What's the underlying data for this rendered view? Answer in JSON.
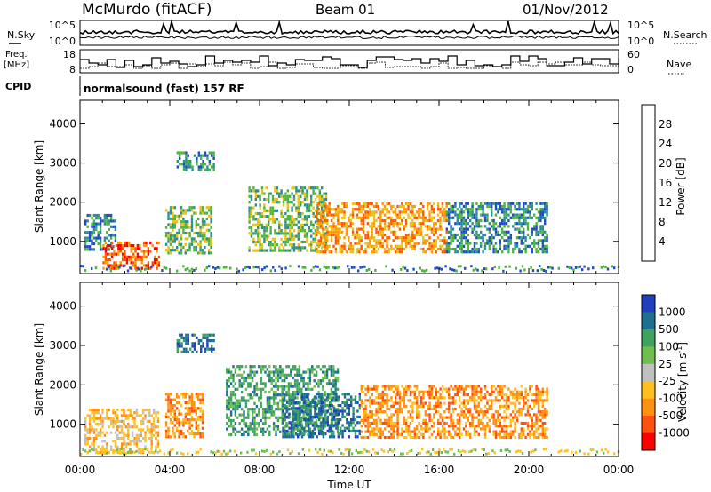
{
  "header": {
    "station": "McMurdo (fitACF)",
    "beam": "Beam 01",
    "date": "01/Nov/2012"
  },
  "left_labels": {
    "nsky": "N.Sky",
    "freq_line1": "Freq.",
    "freq_line2": "[MHz]",
    "cpid": "CPID"
  },
  "right_labels": {
    "nsearch": "N.Search",
    "nave": "Nave"
  },
  "noise_panel": {
    "left_ticks": [
      "10^5",
      "10^0"
    ],
    "right_ticks": [
      "10^5",
      "10^0"
    ]
  },
  "freq_panel": {
    "left_ticks": [
      "18",
      "8"
    ],
    "right_ticks": [
      "60",
      "0"
    ]
  },
  "cpid_text": "normalsound (fast) 157 RF",
  "x_axis": {
    "label": "Time UT",
    "ticks": [
      "00:00",
      "04:00",
      "08:00",
      "12:00",
      "16:00",
      "20:00",
      "00:00"
    ]
  },
  "chart_data": [
    {
      "type": "heatmap",
      "title": "",
      "xlabel": "Time UT",
      "ylabel": "Slant Range [km]",
      "x_ticks": [
        "00:00",
        "04:00",
        "08:00",
        "12:00",
        "16:00",
        "20:00",
        "00:00"
      ],
      "y_ticks": [
        "1000",
        "2000",
        "3000",
        "4000"
      ],
      "ylim": [
        180,
        4600
      ],
      "xlim_hours": [
        0,
        24
      ],
      "colorbar": {
        "label": "Power [dB]",
        "ticks": [
          "4",
          "8",
          "12",
          "16",
          "20",
          "24",
          "28"
        ],
        "range": [
          0,
          32
        ],
        "colors": [
          "#0000ff",
          "#1f4fbf",
          "#2c8f8f",
          "#4fb33f",
          "#e6c21a",
          "#ff9a00",
          "#ff5a00",
          "#ff0000"
        ]
      },
      "regions": [
        {
          "t0": 0.2,
          "t1": 1.6,
          "r0": 800,
          "r1": 1700,
          "value": 10
        },
        {
          "t0": 1.0,
          "t1": 3.5,
          "r0": 300,
          "r1": 1000,
          "value": 26
        },
        {
          "t0": 3.8,
          "t1": 5.8,
          "r0": 700,
          "r1": 1900,
          "value": 14
        },
        {
          "t0": 4.3,
          "t1": 6.0,
          "r0": 2800,
          "r1": 3300,
          "value": 10
        },
        {
          "t0": 7.5,
          "t1": 11.0,
          "r0": 800,
          "r1": 2400,
          "value": 14
        },
        {
          "t0": 10.5,
          "t1": 16.3,
          "r0": 700,
          "r1": 2000,
          "value": 24
        },
        {
          "t0": 16.3,
          "t1": 20.8,
          "r0": 700,
          "r1": 2000,
          "value": 10
        }
      ]
    },
    {
      "type": "heatmap",
      "title": "",
      "xlabel": "Time UT",
      "ylabel": "Slant Range [km]",
      "x_ticks": [
        "00:00",
        "04:00",
        "08:00",
        "12:00",
        "16:00",
        "20:00",
        "00:00"
      ],
      "y_ticks": [
        "1000",
        "2000",
        "3000",
        "4000"
      ],
      "ylim": [
        180,
        4600
      ],
      "xlim_hours": [
        0,
        24
      ],
      "colorbar": {
        "label": "Velocity [m s^-1]",
        "label_main": "Velocity [m s",
        "label_sup": "-1",
        "label_end": "]",
        "ticks": [
          "1000",
          "500",
          "100",
          "25",
          "-25",
          "-100",
          "-500",
          "-1000"
        ],
        "colors": [
          "#1f3fbf",
          "#1f6f8f",
          "#3fa35f",
          "#6fbf4f",
          "#c0c0c0",
          "#ffc020",
          "#ff9010",
          "#ff5010",
          "#ff0000"
        ]
      },
      "regions": [
        {
          "t0": 0.2,
          "t1": 3.5,
          "r0": 300,
          "r1": 1400,
          "value": -100
        },
        {
          "t0": 3.8,
          "t1": 5.5,
          "r0": 700,
          "r1": 1800,
          "value": -500
        },
        {
          "t0": 4.3,
          "t1": 6.0,
          "r0": 2800,
          "r1": 3300,
          "value": 500
        },
        {
          "t0": 6.5,
          "t1": 11.5,
          "r0": 700,
          "r1": 2500,
          "value": 100
        },
        {
          "t0": 9.0,
          "t1": 12.5,
          "r0": 700,
          "r1": 1800,
          "value": 500
        },
        {
          "t0": 12.5,
          "t1": 20.8,
          "r0": 700,
          "r1": 2000,
          "value": -500
        }
      ]
    }
  ]
}
